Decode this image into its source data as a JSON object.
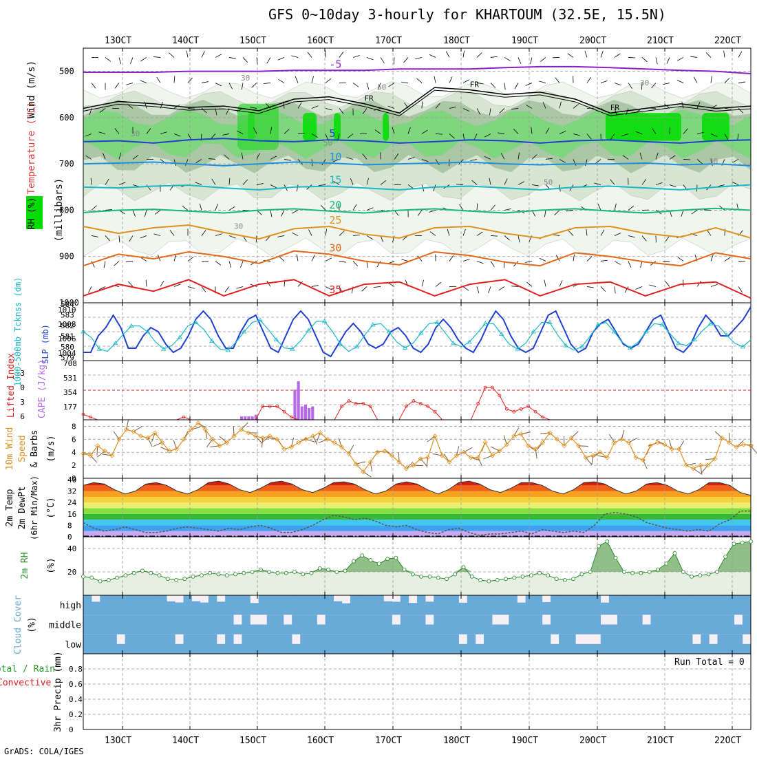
{
  "title": "GFS 0~10day 3-hourly for KHARTOUM (32.5E, 15.5N)",
  "credit": "GrADS: COLA/IGES",
  "colors": {
    "purple": "#8a1fc8",
    "blue": "#1f3fd0",
    "lightblue": "#1e90e0",
    "teal": "#18b8c8",
    "green": "#18b878",
    "orange": "#e09020",
    "darkorange": "#e06818",
    "red": "#e02020",
    "magenta": "#d0108a",
    "rh_green": "#00dd00",
    "cloud": "#6aaad8",
    "cape": "#b56be6"
  },
  "chart_data": [
    {
      "id": "upper_air",
      "type": "contour",
      "xlabel": "",
      "x_ticks": [
        "13OCT",
        "14OCT",
        "15OCT",
        "16OCT",
        "17OCT",
        "18OCT",
        "19OCT",
        "20OCT",
        "21OCT",
        "22OCT"
      ],
      "y_ticks": [
        500,
        600,
        700,
        800,
        900,
        1000
      ],
      "ylim": [
        1000,
        450
      ],
      "left_labels": {
        "wind": "Wind (m/s)",
        "temperature": "Temperature (°C)",
        "rh": "RH (%)",
        "units": "(millibars)"
      },
      "temperature_isotherms": [
        {
          "label": "-5",
          "pressure": [
            502,
            502,
            502,
            500,
            500,
            500,
            498,
            498,
            498,
            495,
            495,
            495,
            492,
            490,
            490,
            492,
            495,
            498,
            500,
            505
          ]
        },
        {
          "label": "5",
          "pressure": [
            652,
            650,
            655,
            648,
            645,
            650,
            652,
            648,
            650,
            655,
            652,
            648,
            650,
            655,
            650,
            648,
            652,
            655,
            650,
            648
          ]
        },
        {
          "label": "10",
          "pressure": [
            700,
            698,
            696,
            700,
            704,
            700,
            696,
            698,
            702,
            700,
            698,
            696,
            700,
            702,
            700,
            700,
            698,
            702,
            700,
            704
          ]
        },
        {
          "label": "15",
          "pressure": [
            750,
            752,
            748,
            746,
            752,
            756,
            750,
            748,
            752,
            756,
            750,
            748,
            752,
            756,
            750,
            748,
            752,
            756,
            750,
            745
          ]
        },
        {
          "label": "20",
          "pressure": [
            805,
            800,
            798,
            802,
            806,
            800,
            797,
            802,
            806,
            800,
            797,
            802,
            806,
            800,
            797,
            802,
            806,
            800,
            796,
            800
          ]
        },
        {
          "label": "25",
          "pressure": [
            835,
            850,
            838,
            832,
            848,
            862,
            840,
            835,
            852,
            860,
            838,
            835,
            850,
            860,
            838,
            835,
            850,
            858,
            838,
            860
          ]
        },
        {
          "label": "30",
          "pressure": [
            920,
            895,
            905,
            890,
            900,
            915,
            888,
            895,
            910,
            918,
            890,
            898,
            912,
            920,
            892,
            900,
            912,
            920,
            892,
            905
          ]
        },
        {
          "label": "35",
          "pressure": [
            985,
            960,
            975,
            950,
            985,
            960,
            950,
            985,
            960,
            955,
            985,
            960,
            950,
            985,
            960,
            955,
            985,
            960,
            955,
            990
          ]
        }
      ],
      "freezing_level": {
        "label": "FR",
        "pressure": [
          580,
          565,
          570,
          578,
          575,
          585,
          560,
          555,
          570,
          590,
          535,
          540,
          550,
          545,
          560,
          590,
          580,
          570,
          580,
          575
        ]
      },
      "rh_levels": [
        30,
        50,
        70,
        90
      ],
      "rh_labels": [
        "30",
        "50",
        "30",
        "50",
        "30",
        "30",
        "50",
        "30"
      ]
    },
    {
      "id": "slp_thickness",
      "type": "line",
      "left_labels": {
        "thickness": "1000-500mb Tcknss (dm)",
        "slp": "SLP (mb)"
      },
      "thickness_ticks": [
        "584",
        "583",
        "582",
        "581",
        "580",
        "579"
      ],
      "slp_ticks": [
        "1010",
        "1008",
        "1006",
        "1004"
      ],
      "series": [
        {
          "name": "SLP (mb)",
          "ylim": [
            1004,
            1011
          ],
          "values": [
            1005,
            1005,
            1007,
            1008,
            1009.5,
            1008,
            1005.5,
            1005.5,
            1007,
            1008,
            1007.5,
            1006,
            1005,
            1005.5,
            1007,
            1009,
            1010,
            1009,
            1007,
            1005.5,
            1005.5,
            1007.5,
            1009,
            1009.5,
            1007.5,
            1005.5,
            1005,
            1007,
            1009,
            1010,
            1009,
            1007,
            1005,
            1004.5,
            1006,
            1007.5,
            1008.5,
            1007.5,
            1006,
            1005.5,
            1006,
            1007.5,
            1008,
            1007,
            1005.5,
            1005,
            1006,
            1008,
            1009,
            1008,
            1006.5,
            1005.5,
            1005,
            1006.5,
            1008.5,
            1010,
            1009,
            1007,
            1005.5,
            1005,
            1005.5,
            1007.5,
            1009.5,
            1010,
            1008,
            1006,
            1005,
            1005.5,
            1007.5,
            1008.5,
            1009,
            1007.5,
            1006,
            1005.5,
            1006,
            1007.5,
            1009,
            1009.5,
            1007.5,
            1005.5,
            1005,
            1006,
            1008,
            1009.5,
            1008.5,
            1007,
            1007,
            1008,
            1009,
            1010.5
          ]
        },
        {
          "name": "1000-500mb Thickness (dm)",
          "ylim": [
            579,
            584
          ],
          "values": [
            581.5,
            581,
            580,
            579.8,
            580.5,
            581.3,
            582,
            582,
            581.5,
            580.6,
            580,
            580.3,
            581,
            582,
            582.3,
            581.7,
            580.7,
            580,
            579.9,
            580.6,
            581.5,
            582.3,
            582.5,
            581.7,
            580.8,
            580.1,
            580,
            580.7,
            581.6,
            582.4,
            582.4,
            581.5,
            580.4,
            579.8,
            580.2,
            581.2,
            582.1,
            582.2,
            581.5,
            580.6,
            580.1,
            580.5,
            581.4,
            582.2,
            582.3,
            581.4,
            580.5,
            580.2,
            580.6,
            581.4,
            582.2,
            582.2,
            581.3,
            580.4,
            580,
            580.5,
            581.5,
            582.3,
            582.3,
            581.2,
            580.3,
            579.9,
            580.2,
            581.1,
            582.1,
            582.3,
            581.5,
            580.6,
            580.1,
            580.6,
            581.5,
            582.2,
            582.1,
            581.3,
            580.5,
            580.3,
            580.8,
            581.6,
            582.2,
            582,
            581.2,
            580.5,
            580.2,
            580.8
          ]
        }
      ]
    },
    {
      "id": "cape_li",
      "type": "bar+line",
      "left_labels": {
        "li": "Lifted Index",
        "cape": "CAPE (J/kg)"
      },
      "li_ticks": [
        "-3",
        "0",
        "3",
        "6"
      ],
      "cape_ticks": [
        "708",
        "531",
        "354",
        "177"
      ],
      "cape_max": 708,
      "cape_values": [
        0,
        0,
        0,
        0,
        0,
        0,
        0,
        0,
        0,
        0,
        0,
        0,
        0,
        0,
        0,
        0,
        0,
        0,
        0,
        0,
        0,
        0,
        0,
        0,
        0,
        0,
        0,
        0,
        0,
        0,
        0,
        0,
        0,
        0,
        0,
        0,
        0,
        0,
        0,
        0,
        0,
        0,
        0,
        0,
        40,
        40,
        40,
        40,
        60,
        0,
        0,
        0,
        0,
        0,
        0,
        0,
        0,
        0,
        0,
        360,
        460,
        160,
        180,
        140,
        160,
        0,
        0,
        0,
        0,
        0,
        0,
        0,
        0,
        0,
        0,
        0,
        0,
        0,
        0,
        0,
        0,
        0,
        0,
        0,
        0,
        0,
        0,
        0,
        0,
        0,
        0,
        0,
        0,
        0,
        0,
        0,
        0,
        0,
        0,
        0,
        0,
        0,
        0,
        0,
        0,
        0,
        0,
        0,
        0,
        0,
        0,
        0,
        0,
        0,
        0,
        0,
        0,
        0,
        0,
        0,
        0,
        0,
        0,
        0,
        0,
        0,
        0,
        0,
        0,
        0,
        0,
        0,
        0,
        0,
        0,
        0,
        0,
        0,
        0,
        0,
        0,
        0,
        0,
        0,
        0,
        0,
        0,
        0,
        0,
        0,
        0,
        0,
        0,
        0,
        0,
        0,
        0,
        0,
        0,
        0,
        0,
        0,
        0,
        0,
        0,
        0,
        0,
        0,
        0,
        0,
        0,
        0,
        0,
        0,
        0,
        0,
        0,
        0,
        0,
        0,
        0,
        0,
        0,
        0,
        0,
        0,
        0,
        0
      ],
      "li_ylim": [
        -5,
        6
      ],
      "li_values": [
        5,
        5.5,
        7,
        7,
        7,
        7,
        7,
        7,
        7,
        7,
        7,
        6,
        6,
        6,
        5.5,
        6,
        7,
        7,
        7,
        7,
        7,
        7,
        7,
        7,
        7,
        3.5,
        3.5,
        3.5,
        4.5,
        5.5,
        7,
        7,
        7,
        7,
        7,
        7,
        3.5,
        2.5,
        3,
        3,
        3.5,
        7,
        7,
        7,
        7,
        3.5,
        2.5,
        3,
        3.5,
        4.5,
        7,
        7,
        7,
        7,
        7,
        3,
        0,
        0,
        1.5,
        4,
        4.5,
        4,
        3.5,
        4.5,
        5.5,
        7,
        7,
        7,
        7,
        7,
        7,
        7,
        7,
        7,
        7,
        7,
        7,
        7,
        7,
        7,
        7,
        7,
        7,
        7,
        7,
        7,
        7,
        7,
        7,
        7,
        7,
        7,
        7,
        7
      ]
    },
    {
      "id": "wind10m",
      "type": "line",
      "left_labels": {
        "main": "10m Wind Speed & Barbs",
        "units": "(m/s)"
      },
      "y_ticks": [
        "8",
        "6",
        "4",
        "2",
        "0"
      ],
      "ylim": [
        0,
        9
      ],
      "values": [
        3.8,
        3.5,
        5,
        4.2,
        3.5,
        6,
        7.5,
        7.2,
        6.5,
        6.2,
        7,
        5.5,
        4.2,
        4.5,
        6,
        7.5,
        8.5,
        7.5,
        6,
        5,
        5.5,
        6.5,
        7.5,
        7,
        6.5,
        6.2,
        6.5,
        6,
        4.5,
        4.8,
        5.5,
        6,
        6.5,
        7,
        6,
        5.5,
        4.8,
        3.8,
        2.2,
        1,
        2.5,
        4,
        4.2,
        3.5,
        2.5,
        1.5,
        2,
        3,
        3.2,
        6.5,
        3.5,
        2.5,
        3.5,
        4,
        3.2,
        3.2,
        5.5,
        3.5,
        4.2,
        5.2,
        6.5,
        6.8,
        5,
        4.5,
        5.5,
        7,
        6,
        5,
        6.2,
        5,
        3.2,
        3.5,
        4,
        3.2,
        5.5,
        6,
        5.5,
        3.2,
        2.8,
        5,
        5.5,
        5.2,
        4.5,
        4.5,
        2,
        1.5,
        2,
        2,
        3,
        6.2,
        5.5,
        4.8,
        5.2,
        5
      ]
    },
    {
      "id": "temp2m",
      "type": "area",
      "left_labels": {
        "main": "2m Temp 2m DewPt (6hr Min/Max)",
        "units": "(°C)"
      },
      "y_ticks": [
        "40",
        "32",
        "24",
        "16",
        "8",
        "0"
      ],
      "ylim": [
        0,
        41
      ],
      "temp_values": [
        36,
        38,
        37,
        33,
        30,
        32,
        37,
        38,
        36,
        32,
        30,
        33,
        38,
        39,
        37,
        33,
        31,
        34,
        38,
        39,
        37,
        33,
        31,
        34,
        38,
        38.5,
        37,
        33,
        30,
        32,
        37,
        38.5,
        37,
        33,
        30,
        33,
        38,
        39,
        37,
        33,
        31,
        34,
        38,
        38,
        36,
        32,
        30,
        33,
        38,
        38.5,
        37,
        33,
        30,
        32,
        37,
        38,
        36,
        32,
        30,
        33,
        38,
        38,
        36,
        31,
        29
      ],
      "dewpt_values": [
        10,
        6,
        4,
        5,
        7,
        5,
        3,
        3,
        4,
        6,
        7,
        6,
        5,
        4,
        6,
        5,
        7,
        8,
        6,
        3,
        3,
        5,
        8,
        12,
        15,
        14,
        12,
        13,
        11,
        8,
        7,
        8,
        5,
        3,
        2,
        5,
        6,
        3,
        1,
        2,
        2,
        3,
        4,
        2,
        5,
        4,
        3,
        4,
        3,
        8,
        16,
        17,
        16,
        14,
        10,
        8,
        6,
        5,
        4,
        5,
        4,
        9,
        12,
        18,
        18
      ]
    },
    {
      "id": "rh2m",
      "type": "area",
      "left_labels": {
        "main": "2m RH",
        "units": "(%)"
      },
      "y_ticks": [
        "40",
        "20"
      ],
      "ylim": [
        0,
        50
      ],
      "values": [
        16,
        15,
        12,
        13,
        15,
        17,
        19,
        21,
        19,
        17,
        14,
        13,
        14,
        16,
        17,
        19,
        18,
        17,
        18,
        19,
        20,
        22,
        20,
        19,
        19,
        20,
        18,
        19,
        23,
        22,
        20,
        21,
        29,
        34,
        30,
        27,
        31,
        32,
        22,
        18,
        16,
        16,
        15,
        14,
        18,
        24,
        16,
        13,
        12,
        13,
        14,
        15,
        16,
        17,
        19,
        17,
        14,
        13,
        14,
        18,
        20,
        42,
        46,
        32,
        20,
        19,
        19,
        20,
        22,
        27,
        36,
        20,
        16,
        17,
        18,
        20,
        33,
        44,
        45,
        46
      ]
    },
    {
      "id": "cloud",
      "type": "bar",
      "left_labels": {
        "main": "Cloud Cover",
        "units": "(%)"
      },
      "levels": [
        "high",
        "middle",
        "low"
      ],
      "note": "high cloud mostly near 100%, middle/low mostly 100% with intermittent breaks"
    },
    {
      "id": "precip",
      "type": "bar",
      "left_labels": {
        "main": "3hr Precip (mm)",
        "total": "Total / Rain",
        "convective": "Convective"
      },
      "y_ticks": [
        "0.8",
        "0.6",
        "0.4",
        "0.2",
        "0"
      ],
      "ylim": [
        0,
        1
      ],
      "run_total": "Run Total = 0",
      "values": []
    }
  ]
}
